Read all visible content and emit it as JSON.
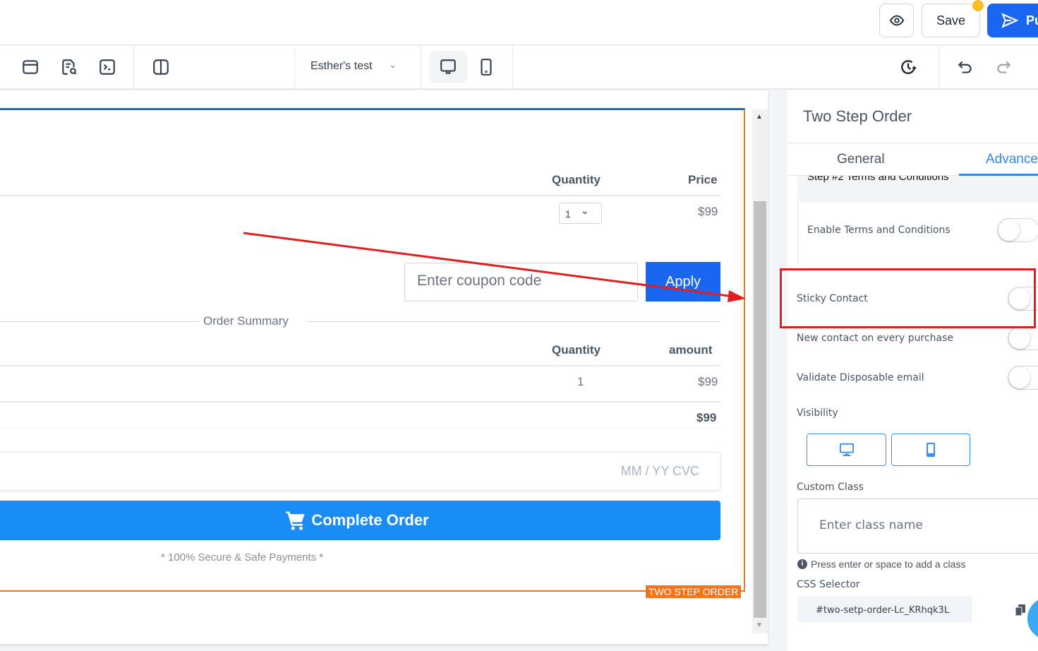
{
  "header": {
    "save_label": "Save",
    "publish_label": "Pu",
    "preview_icon": "eye-icon",
    "send_icon": "send-icon"
  },
  "toolbar": {
    "page_select": "Esther's test",
    "icons": [
      "layout-icon",
      "page-search-icon",
      "code-terminal-icon",
      "columns-icon",
      "desktop-icon",
      "mobile-icon",
      "history-icon",
      "undo-icon",
      "redo-icon"
    ]
  },
  "canvas": {
    "table1": {
      "headers": [
        "Quantity",
        "Price"
      ],
      "qty": "1",
      "price": "$99"
    },
    "coupon_placeholder": "Enter coupon code",
    "apply_label": "Apply",
    "summary_title": "Order Summary",
    "table2": {
      "headers": [
        "Quantity",
        "amount"
      ],
      "qty": "1",
      "amount": "$99",
      "total": "$99"
    },
    "card_placeholder": "MM / YY  CVC",
    "complete_label": "Complete Order",
    "secure_text": "* 100% Secure & Safe Payments *",
    "element_tag": "TWO STEP ORDER"
  },
  "panel": {
    "title": "Two Step Order",
    "tabs": [
      {
        "label": "General",
        "active": false
      },
      {
        "label": "Advance",
        "active": true
      }
    ],
    "section_header": "Step #2 Terms and Conditions",
    "enable_terms": {
      "label": "Enable Terms and Conditions",
      "on": false
    },
    "sticky_contact": {
      "label": "Sticky Contact",
      "on": false
    },
    "new_contact": {
      "label": "New contact on every purchase",
      "on": false
    },
    "validate_email": {
      "label": "Validate Disposable email",
      "on": false
    },
    "visibility_label": "Visibility",
    "custom_class_label": "Custom Class",
    "custom_class_placeholder": "Enter class name",
    "hint": "Press enter or space to add a class",
    "css_selector_label": "CSS Selector",
    "css_selector_value": "#two-setp-order-Lc_KRhqk3L"
  },
  "colors": {
    "accent": "#1a66f0",
    "orange": "#f97316",
    "annotation": "#e02020",
    "button": "#1a8cf5"
  }
}
